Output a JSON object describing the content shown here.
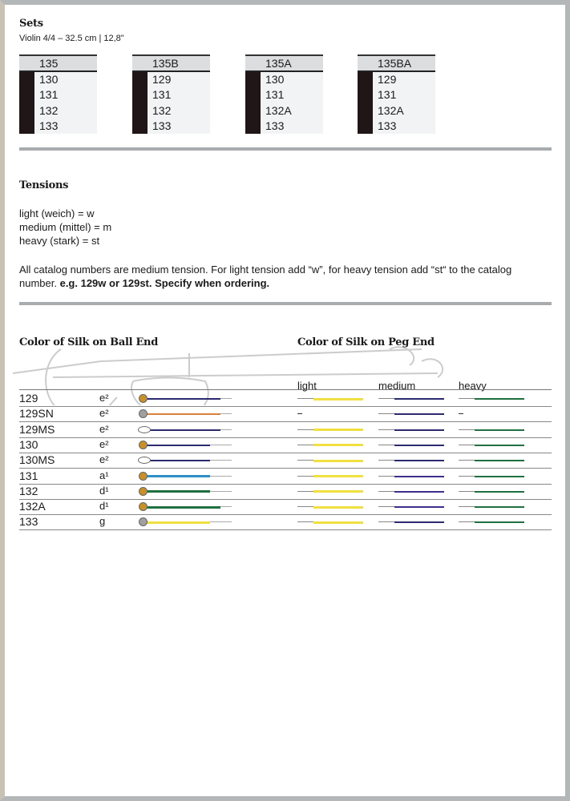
{
  "sets": {
    "title": "Sets",
    "subtitle": "Violin 4/4 – 32.5 cm | 12,8\"",
    "tables": [
      {
        "name": "135",
        "items": [
          "130",
          "131",
          "132",
          "133"
        ]
      },
      {
        "name": "135B",
        "items": [
          "129",
          "131",
          "132",
          "133"
        ]
      },
      {
        "name": "135A",
        "items": [
          "130",
          "131",
          "132A",
          "133"
        ]
      },
      {
        "name": "135BA",
        "items": [
          "129",
          "131",
          "132A",
          "133"
        ]
      }
    ]
  },
  "tensions": {
    "title": "Tensions",
    "lines": [
      "light (weich) = w",
      "medium (mittel) = m",
      "heavy (stark) = st"
    ],
    "note": "All catalog numbers are medium tension. For light tension add “w”, for heavy tension add “st“ to the catalog number. ",
    "note_bold": "e.g. 129w or 129st. Specify when ordering."
  },
  "silk": {
    "ball_title": "Color of Silk on Ball End",
    "peg_title": "Color of Silk on Peg End",
    "columns": [
      "light",
      "medium",
      "heavy"
    ],
    "colors": {
      "yellow": "#f0e040",
      "navy": "#2b2a6e",
      "purple": "#3d2e8a",
      "green": "#1f7040",
      "blue": "#2f8fc8",
      "orange": "#d9803a",
      "gold": "#c8902a",
      "silver": "#a0a0a0"
    },
    "rows": [
      {
        "num": "129",
        "note": "e²",
        "ball": "gold",
        "loop": false,
        "ball_color": "navy",
        "light": "yellow",
        "medium": "navy",
        "heavy": "green"
      },
      {
        "num": "129SN",
        "note": "e²",
        "ball": "silver",
        "loop": false,
        "ball_color": "orange",
        "light": "–",
        "medium": "navy",
        "heavy": "–"
      },
      {
        "num": "129MS",
        "note": "e²",
        "ball": "",
        "loop": true,
        "ball_color": "navy",
        "light": "yellow",
        "medium": "navy",
        "heavy": "green"
      },
      {
        "num": "130",
        "note": "e²",
        "ball": "gold",
        "loop": false,
        "ball_color": "navy",
        "light": "yellow",
        "medium": "navy",
        "heavy": "green"
      },
      {
        "num": "130MS",
        "note": "e²",
        "ball": "",
        "loop": true,
        "ball_color": "navy",
        "light": "yellow",
        "medium": "navy",
        "heavy": "green"
      },
      {
        "num": "131",
        "note": "a¹",
        "ball": "gold",
        "loop": false,
        "ball_color": "blue",
        "light": "yellow",
        "medium": "purple",
        "heavy": "green"
      },
      {
        "num": "132",
        "note": "d¹",
        "ball": "gold",
        "loop": false,
        "ball_color": "green",
        "light": "yellow",
        "medium": "purple",
        "heavy": "green"
      },
      {
        "num": "132A",
        "note": "d¹",
        "ball": "gold",
        "loop": false,
        "ball_color": "green",
        "light": "yellow",
        "medium": "purple",
        "heavy": "green"
      },
      {
        "num": "133",
        "note": "g",
        "ball": "silver",
        "loop": false,
        "ball_color": "yellow",
        "light": "yellow",
        "medium": "navy",
        "heavy": "green"
      }
    ]
  }
}
